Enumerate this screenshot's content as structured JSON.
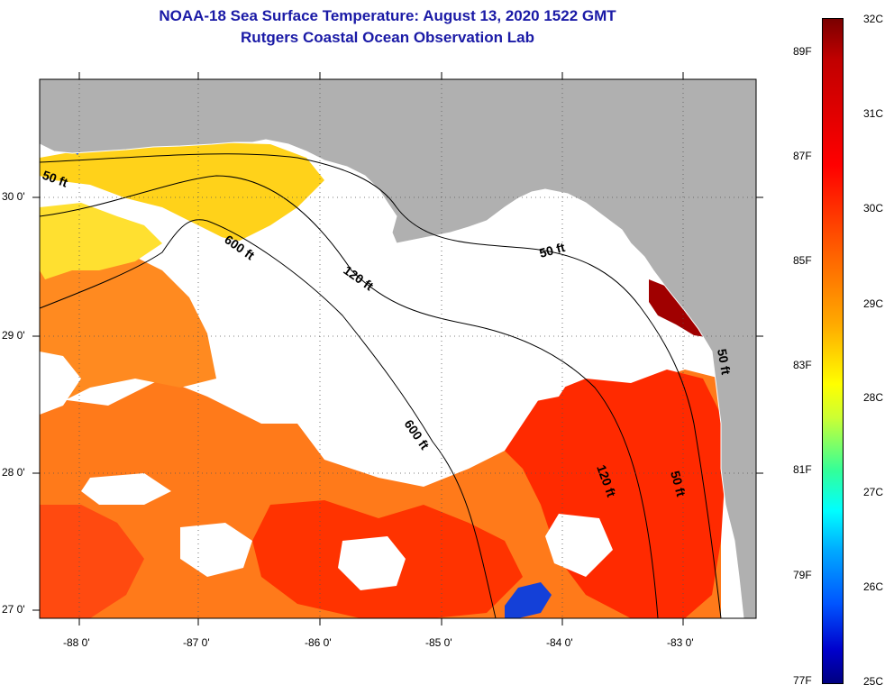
{
  "title": {
    "line1": "NOAA-18 Sea Surface Temperature:  August 13, 2020 1522 GMT",
    "line2": "Rutgers Coastal Ocean Observation Lab"
  },
  "map": {
    "lat_labels": [
      "30 0'",
      "29 0'",
      "28 0'",
      "27 0'"
    ],
    "lon_labels": [
      "-88 0'",
      "-87 0'",
      "-86 0'",
      "-85 0'",
      "-84 0'",
      "-83 0'"
    ],
    "contour_labels": {
      "c50_west": "50 ft",
      "c600_north": "600 ft",
      "c120_north": "120 ft",
      "c50_east": "50 ft",
      "c600_south": "600 ft",
      "c120_south": "120 ft",
      "c50_south": "50 ft",
      "c50_coast": "50 ft"
    }
  },
  "colorbar": {
    "celsius": [
      "32C",
      "31C",
      "30C",
      "29C",
      "28C",
      "27C",
      "26C",
      "25C"
    ],
    "fahrenheit": [
      "89F",
      "87F",
      "85F",
      "83F",
      "81F",
      "79F",
      "77F"
    ]
  },
  "colors": {
    "land": "#b0b0b0",
    "title": "#1a1aa6",
    "hot_dark": "#8b0000",
    "hot": "#ff2000",
    "warm": "#ff7a00",
    "mid": "#ffd000",
    "cool": "#1040d0"
  }
}
